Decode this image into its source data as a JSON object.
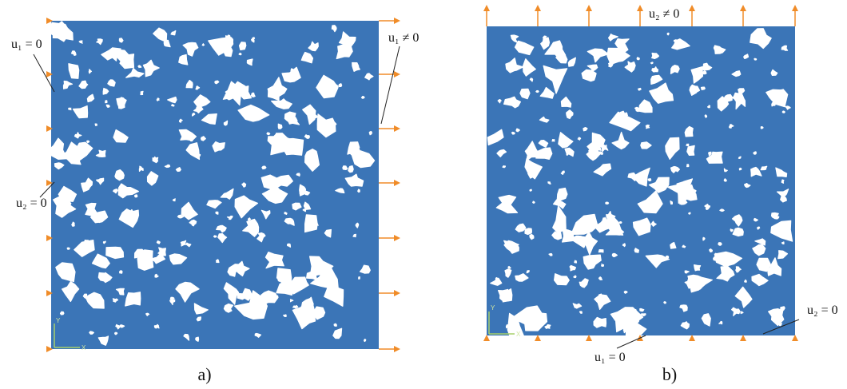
{
  "panels": [
    {
      "caption": "a)",
      "labels": {
        "left_top": "u₁ = 0",
        "left_mid": "u₂ = 0",
        "right_top": "u₁ ≠ 0"
      }
    },
    {
      "caption": "b)",
      "labels": {
        "top_mid": "u₂ ≠ 0",
        "bottom_mid": "u₁ = 0",
        "bottom_right": "u₂ = 0"
      }
    }
  ],
  "colors": {
    "plate": "#3b75b7",
    "pores": "#ffffff",
    "arrows": "#f08c28",
    "axis": "#a7d06c"
  }
}
